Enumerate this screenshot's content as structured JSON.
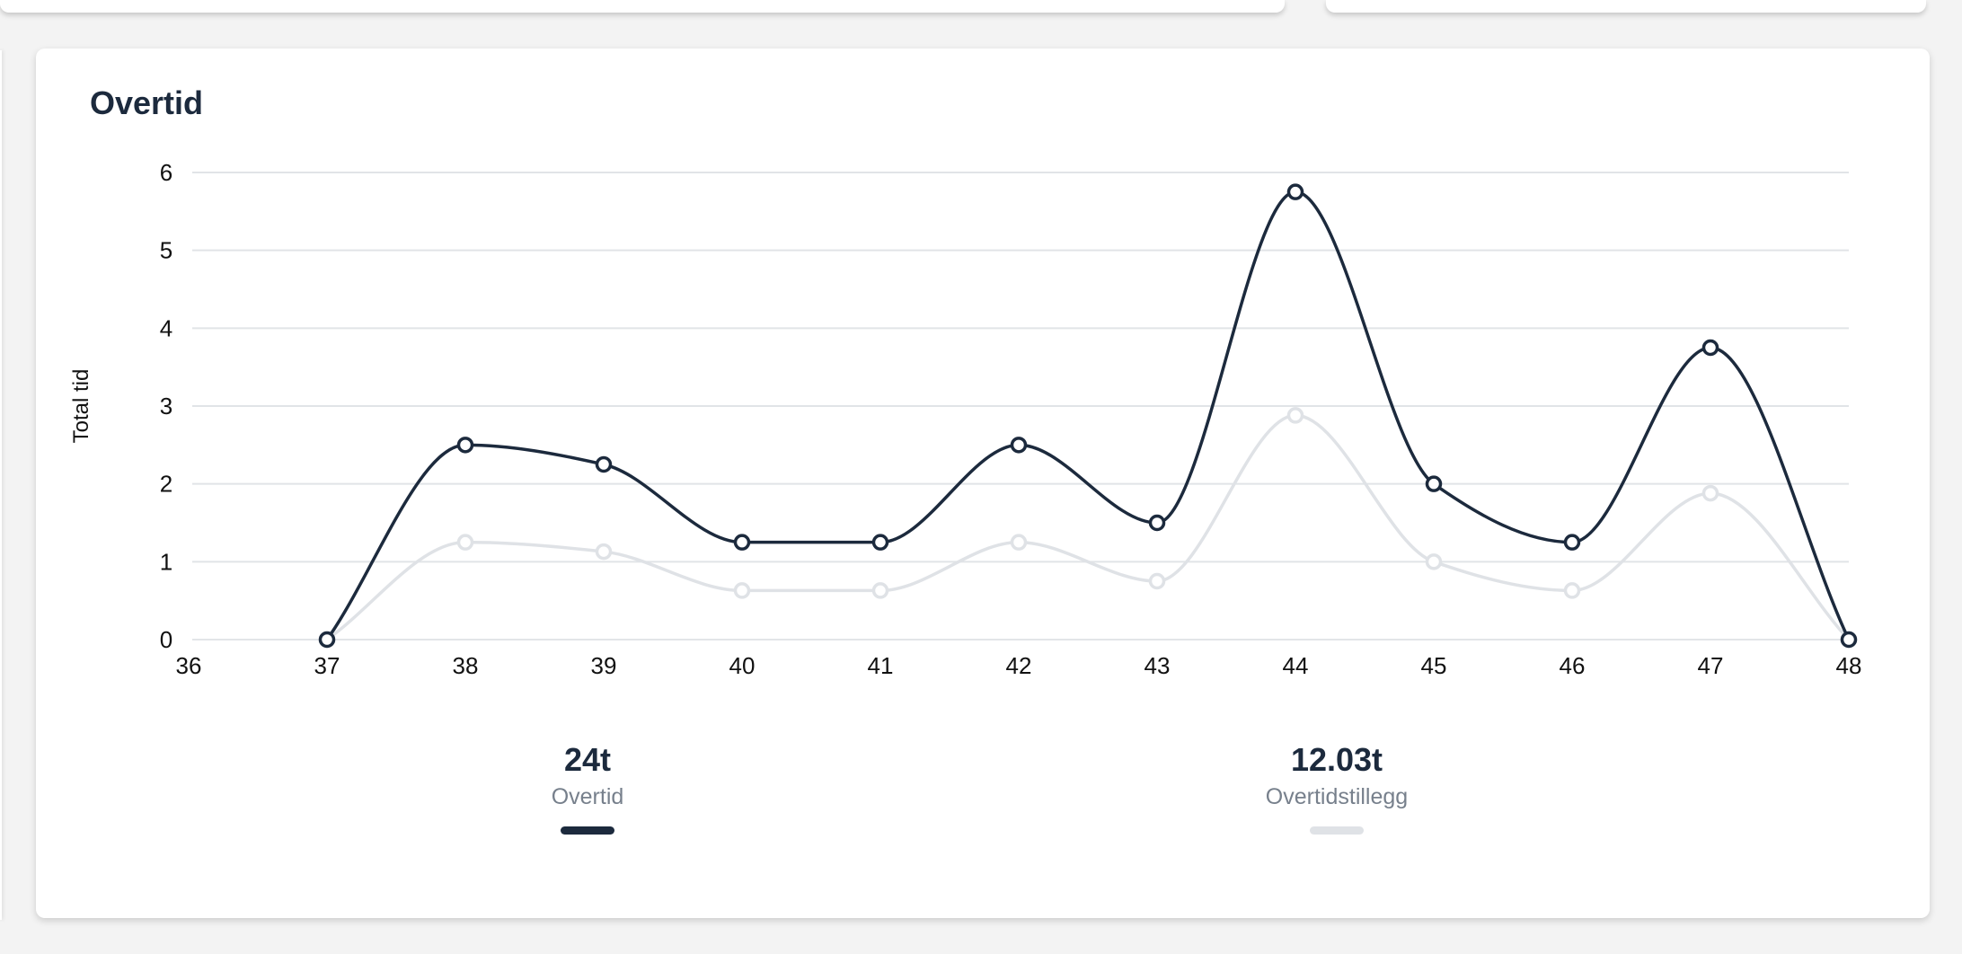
{
  "card": {
    "title": "Overtid"
  },
  "chart_data": {
    "type": "line",
    "ylabel": "Total tid",
    "xlabel": "",
    "x": [
      36,
      37,
      38,
      39,
      40,
      41,
      42,
      43,
      44,
      45,
      46,
      47,
      48
    ],
    "x_ticks": [
      "36",
      "37",
      "38",
      "39",
      "40",
      "41",
      "42",
      "43",
      "44",
      "45",
      "46",
      "47",
      "48"
    ],
    "y_ticks": [
      "0",
      "1",
      "2",
      "3",
      "4",
      "5",
      "6"
    ],
    "xlim": [
      36,
      48
    ],
    "ylim": [
      0,
      6
    ],
    "grid": true,
    "smooth": true,
    "series": [
      {
        "name": "Overtid",
        "color": "#1c2a3d",
        "x": [
          37,
          38,
          39,
          40,
          41,
          42,
          43,
          44,
          45,
          46,
          47,
          48
        ],
        "values": [
          0,
          2.5,
          2.25,
          1.25,
          1.25,
          2.5,
          1.5,
          5.75,
          2,
          1.25,
          3.75,
          0
        ]
      },
      {
        "name": "Overtidstillegg",
        "color": "#dfe2e6",
        "x": [
          37,
          38,
          39,
          40,
          41,
          42,
          43,
          44,
          45,
          46,
          47,
          48
        ],
        "values": [
          0,
          1.25,
          1.13,
          0.63,
          0.63,
          1.25,
          0.75,
          2.88,
          1,
          0.63,
          1.88,
          0
        ]
      }
    ]
  },
  "summary": [
    {
      "value": "24t",
      "label": "Overtid",
      "color": "#1c2a3d"
    },
    {
      "value": "12.03t",
      "label": "Overtidstillegg",
      "color": "#dfe2e6"
    }
  ]
}
